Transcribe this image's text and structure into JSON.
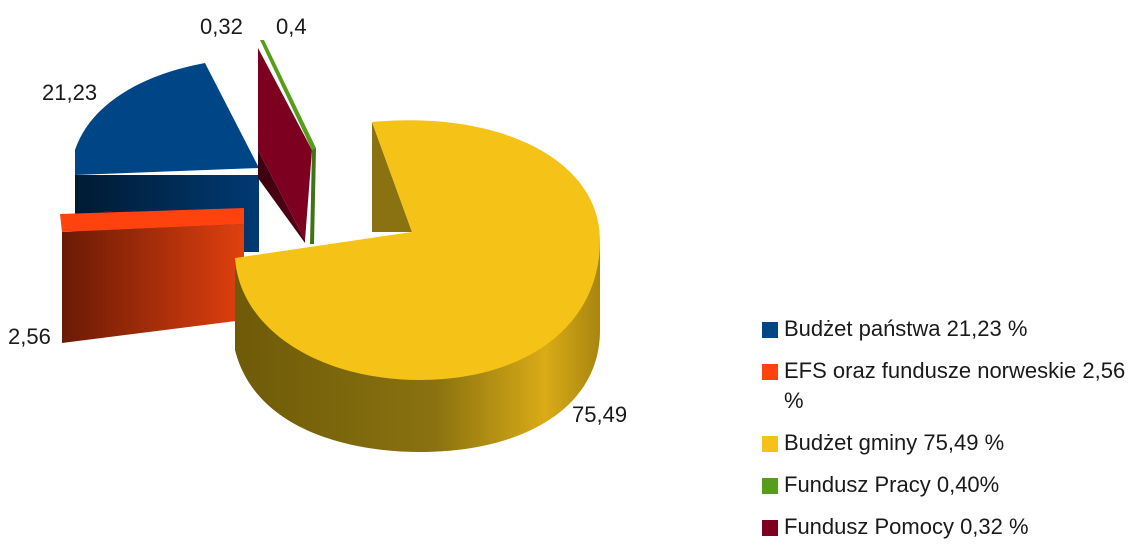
{
  "chart_data": {
    "type": "pie",
    "categories": [
      "Budżet państwa",
      "EFS oraz fundusze norweskie",
      "Budżet gminy",
      "Fundusz Pracy",
      "Fundusz Pomocy"
    ],
    "values": [
      21.23,
      2.56,
      75.49,
      0.4,
      0.32
    ],
    "value_labels": [
      "21,23",
      "2,56",
      "75,49",
      "0,4",
      "0,32"
    ],
    "colors": [
      "#004586",
      "#ff420e",
      "#f5c318",
      "#579d1c",
      "#7e0021"
    ],
    "legend_position": "right",
    "legend": [
      {
        "text": "Budżet państwa 21,23 %",
        "color": "#004586"
      },
      {
        "text": "EFS oraz fundusze norweskie 2,56 %",
        "color": "#ff420e"
      },
      {
        "text": "Budżet gminy 75,49 %",
        "color": "#f5c318"
      },
      {
        "text": "Fundusz Pracy 0,40%",
        "color": "#579d1c"
      },
      {
        "text": "Fundusz Pomocy 0,32 %",
        "color": "#7e0021"
      }
    ]
  }
}
